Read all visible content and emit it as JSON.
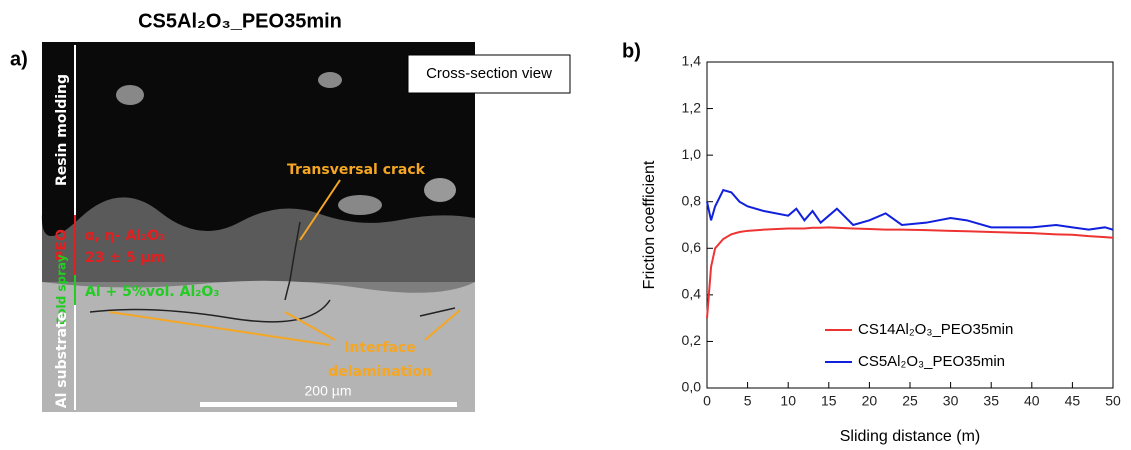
{
  "title": "CS5Al₂O₃_PEO35min",
  "panel_labels": [
    "a)",
    "b)"
  ],
  "micrograph": {
    "box_label": "Cross-section view",
    "crack": "Transversal crack",
    "delamination": [
      "Interface",
      "delamination"
    ],
    "layers": [
      "Resin molding",
      "PEO",
      "Cold spray",
      "Al substrate"
    ],
    "peo_phase": "α, η- Al₂O₃",
    "peo_thickness": "23 ± 5 µm",
    "coating": "Al + 5%vol. Al₂O₃",
    "scale_bar": "200 µm"
  },
  "chart_data": {
    "type": "line",
    "x_label": "Sliding distance (m)",
    "y_label": "Friction coefficient",
    "x": [
      0,
      0.5,
      1,
      2,
      3,
      4,
      5,
      7,
      10,
      11,
      12,
      13,
      14,
      15,
      16,
      18,
      20,
      22,
      24,
      27,
      30,
      32,
      35,
      40,
      43,
      45,
      47,
      49,
      50
    ],
    "series": [
      {
        "name": "CS14Al₂O₃_PEO35min",
        "color": "#ee3333",
        "values": [
          0.3,
          0.52,
          0.6,
          0.64,
          0.66,
          0.67,
          0.675,
          0.68,
          0.685,
          0.685,
          0.685,
          0.688,
          0.688,
          0.69,
          0.688,
          0.685,
          0.683,
          0.68,
          0.68,
          0.678,
          0.675,
          0.673,
          0.67,
          0.665,
          0.66,
          0.658,
          0.652,
          0.648,
          0.645
        ]
      },
      {
        "name": "CS5Al₂O₃_PEO35min",
        "color": "#1020dd",
        "values": [
          0.8,
          0.72,
          0.78,
          0.85,
          0.84,
          0.8,
          0.78,
          0.76,
          0.74,
          0.77,
          0.72,
          0.76,
          0.71,
          0.74,
          0.77,
          0.7,
          0.72,
          0.75,
          0.7,
          0.71,
          0.73,
          0.72,
          0.69,
          0.69,
          0.7,
          0.69,
          0.68,
          0.69,
          0.68
        ]
      }
    ],
    "xlim": [
      0,
      50
    ],
    "xticks": [
      0,
      5,
      10,
      15,
      20,
      25,
      30,
      35,
      40,
      45,
      50
    ],
    "ylim": [
      0,
      1.4
    ],
    "yticks": [
      {
        "value": 0,
        "label": "0,0"
      },
      {
        "value": 0.2,
        "label": "0,2"
      },
      {
        "value": 0.4,
        "label": "0,4"
      },
      {
        "value": 0.6,
        "label": "0,6"
      },
      {
        "value": 0.8,
        "label": "0,8"
      },
      {
        "value": 1.0,
        "label": "1,0"
      },
      {
        "value": 1.2,
        "label": "1,2"
      },
      {
        "value": 1.4,
        "label": "1,4"
      }
    ],
    "legend": "lower right"
  }
}
